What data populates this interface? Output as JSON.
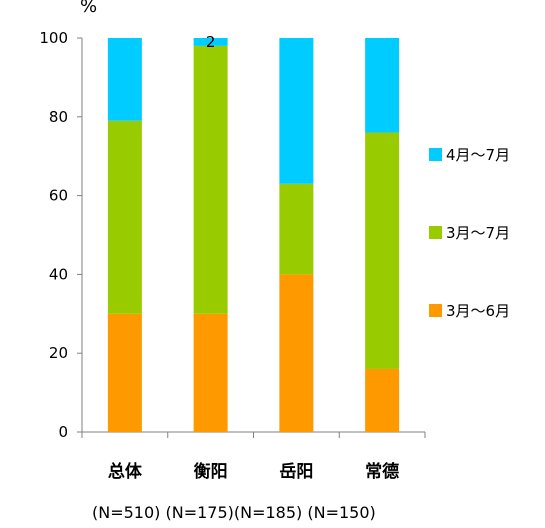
{
  "chart_data": {
    "type": "bar",
    "stacked": true,
    "y_unit_label": "%",
    "ylim": [
      0,
      100
    ],
    "y_ticks": [
      0,
      20,
      40,
      60,
      80,
      100
    ],
    "grid": false,
    "legend_position": "right",
    "categories": [
      "总体",
      "衡阳",
      "岳阳",
      "常德"
    ],
    "sample_sizes": [
      "(N=510)",
      "(N=175)",
      "(N=185)",
      "(N=150)"
    ],
    "sample_sizes_line": "(N=510) (N=175)(N=185) (N=150)",
    "series": [
      {
        "name": "3月～6月",
        "color": "#FF9900",
        "values": [
          30,
          30,
          40,
          16
        ]
      },
      {
        "name": "3月～7月",
        "color": "#99CC00",
        "values": [
          49,
          68,
          23,
          60
        ]
      },
      {
        "name": "4月～7月",
        "color": "#00CCFF",
        "values": [
          21,
          2,
          37,
          24
        ]
      }
    ],
    "data_labels": [
      {
        "category": "衡阳",
        "series": "4月～7月",
        "text": "2"
      }
    ]
  }
}
